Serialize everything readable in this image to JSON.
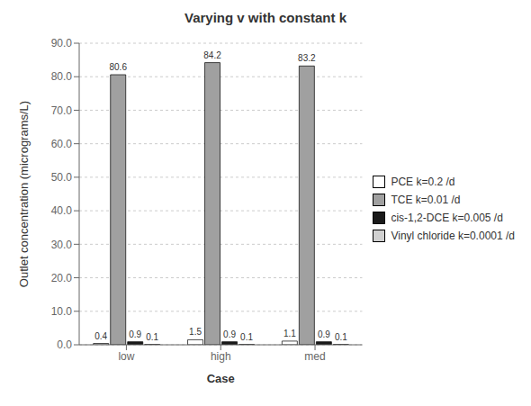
{
  "chart_data": {
    "type": "bar",
    "title": "Varying v with constant k",
    "xlabel": "Case",
    "ylabel": "Outlet concentration (micrograms/L)",
    "categories": [
      "low",
      "high",
      "med"
    ],
    "series": [
      {
        "name": "PCE  k=0.2 /d",
        "color": "#ffffff",
        "values": [
          0.4,
          1.5,
          1.1
        ]
      },
      {
        "name": "TCE  k=0.01 /d",
        "color": "#a0a0a0",
        "values": [
          80.6,
          84.2,
          83.2
        ]
      },
      {
        "name": "cis-1,2-DCE  k=0.005 /d",
        "color": "#1a1a1a",
        "values": [
          0.9,
          0.9,
          0.9
        ]
      },
      {
        "name": "Vinyl chloride k=0.0001 /d",
        "color": "#d0d0d0",
        "values": [
          0.1,
          0.1,
          0.1
        ]
      }
    ],
    "ylim": [
      0.0,
      90.0
    ],
    "yticks": [
      {
        "value": 0,
        "label": "0.0"
      },
      {
        "value": 10,
        "label": "10.0"
      },
      {
        "value": 20,
        "label": "20.0"
      },
      {
        "value": 30,
        "label": "30.0"
      },
      {
        "value": 40,
        "label": "40.0"
      },
      {
        "value": 50,
        "label": "50.0"
      },
      {
        "value": 60,
        "label": "60.0"
      },
      {
        "value": 70,
        "label": "70.0"
      },
      {
        "value": 80,
        "label": "80.0"
      },
      {
        "value": 90,
        "label": "90.0"
      }
    ],
    "grid": true,
    "legend": "right",
    "data_labels": true
  }
}
